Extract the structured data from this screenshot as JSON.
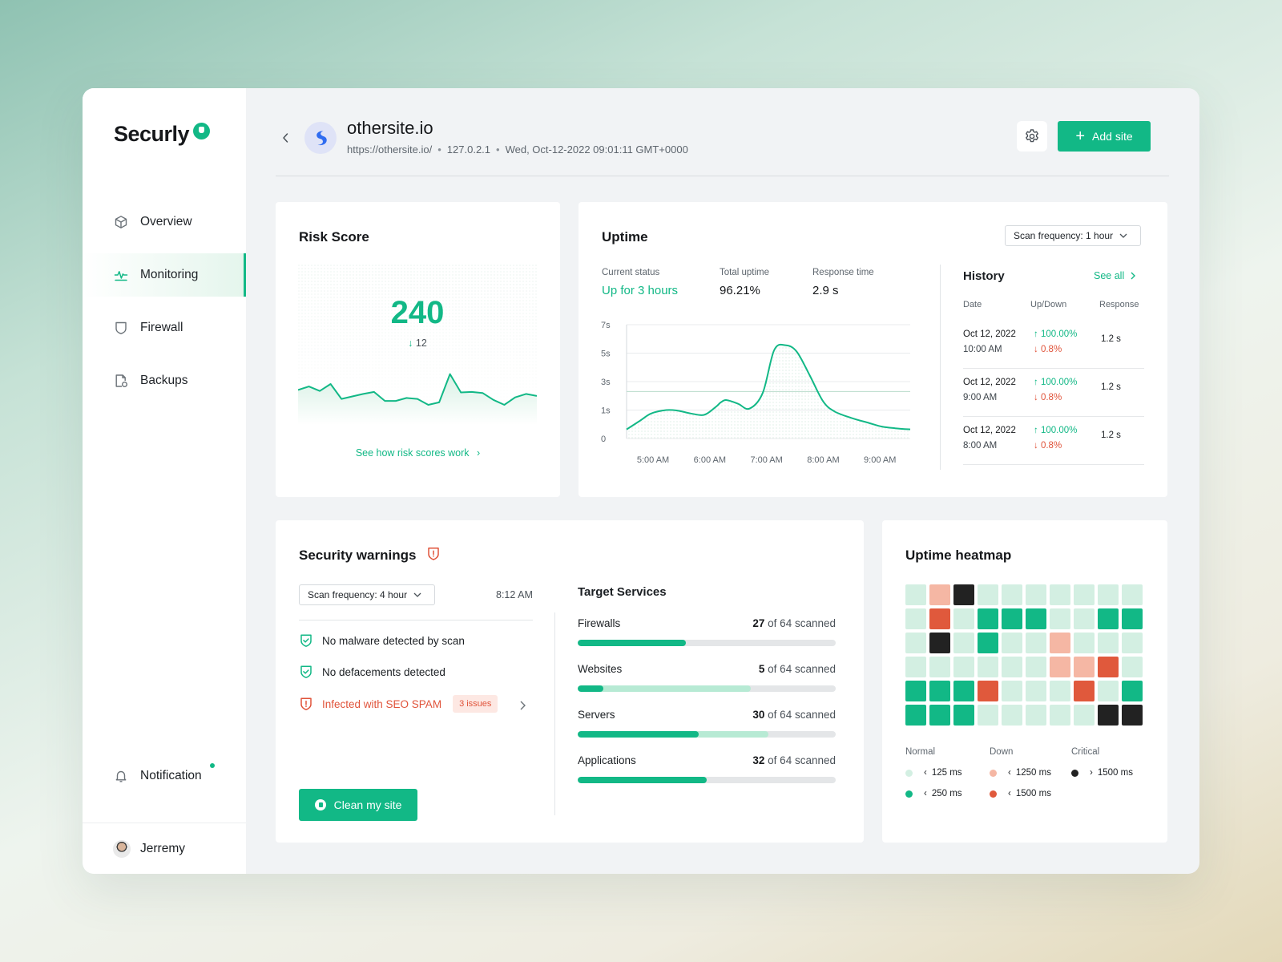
{
  "sidebar": {
    "brand": "Securly",
    "items": [
      {
        "label": "Overview",
        "icon": "cube-icon",
        "active": false
      },
      {
        "label": "Monitoring",
        "icon": "pulse-icon",
        "active": true
      },
      {
        "label": "Firewall",
        "icon": "shield-icon",
        "active": false
      },
      {
        "label": "Backups",
        "icon": "backup-icon",
        "active": false
      }
    ],
    "notification_label": "Notification",
    "user_name": "Jerremy"
  },
  "header": {
    "site_name": "othersite.io",
    "url": "https://othersite.io/",
    "ip": "127.0.2.1",
    "datetime": "Wed, Oct-12-2022 09:01:11 GMT+0000",
    "add_site_label": "Add site"
  },
  "risk": {
    "title": "Risk Score",
    "score": "240",
    "delta": "12",
    "link_label": "See how risk scores work",
    "sparkline": [
      62,
      55,
      64,
      50,
      80,
      75,
      70,
      66,
      84,
      84,
      78,
      80,
      92,
      87,
      30,
      67,
      66,
      68,
      82,
      92,
      77,
      70,
      74
    ]
  },
  "uptime": {
    "title": "Uptime",
    "scan_frequency": "Scan frequency: 1 hour",
    "stats": [
      {
        "label": "Current status",
        "value": "Up for 3 hours"
      },
      {
        "label": "Total uptime",
        "value": "96.21%"
      },
      {
        "label": "Response time",
        "value": "2.9 s"
      }
    ],
    "history": {
      "title": "History",
      "see_all": "See all",
      "columns": [
        "Date",
        "Up/Down",
        "Response"
      ],
      "rows": [
        {
          "date": "Oct 12, 2022",
          "time": "10:00 AM",
          "up": "100.00%",
          "down": "0.8%",
          "response": "1.2 s"
        },
        {
          "date": "Oct 12, 2022",
          "time": "9:00 AM",
          "up": "100.00%",
          "down": "0.8%",
          "response": "1.2 s"
        },
        {
          "date": "Oct 12, 2022",
          "time": "8:00 AM",
          "up": "100.00%",
          "down": "0.8%",
          "response": "1.2 s"
        }
      ]
    }
  },
  "chart_data": {
    "type": "line",
    "y_tick_labels": [
      "0",
      "1s",
      "3s",
      "5s",
      "7s"
    ],
    "x_tick_labels": [
      "5:00 AM",
      "6:00 AM",
      "7:00 AM",
      "8:00 AM",
      "9:00 AM"
    ],
    "ylim": [
      0,
      4
    ],
    "reference_line": 1.65,
    "x": [
      0,
      0.7,
      1.3,
      2.1,
      2.7,
      3.4,
      4.1,
      4.7,
      5.0,
      5.3,
      5.9,
      6.5,
      7.2,
      7.8,
      8.4,
      9.0,
      9.7,
      10.4,
      11.0,
      11.9,
      12.8,
      13.5,
      14.2,
      15.0
    ],
    "y": [
      0.32,
      0.62,
      0.88,
      1.0,
      0.98,
      0.88,
      0.83,
      1.1,
      1.28,
      1.35,
      1.22,
      1.05,
      1.6,
      3.1,
      3.28,
      3.05,
      2.2,
      1.3,
      0.95,
      0.72,
      0.55,
      0.42,
      0.36,
      0.32
    ],
    "xlim": [
      0,
      15
    ],
    "x_tick_positions": [
      1.4,
      4.4,
      7.4,
      10.4,
      13.4
    ]
  },
  "security": {
    "title": "Security warnings",
    "scan_frequency": "Scan frequency: 4 hour",
    "scan_time": "8:12 AM",
    "checks": [
      {
        "label": "No malware detected by scan",
        "status": "ok"
      },
      {
        "label": "No defacements detected",
        "status": "ok"
      },
      {
        "label": "Infected with SEO SPAM",
        "status": "alert",
        "badge": "3 issues"
      }
    ],
    "clean_label": "Clean my site",
    "target_services": {
      "title": "Target Services",
      "items": [
        {
          "name": "Firewalls",
          "count": "27",
          "of_label": "of 64 scanned",
          "fill": 0.42,
          "secondary_fill": 0
        },
        {
          "name": "Websites",
          "count": "5",
          "of_label": "of 64 scanned",
          "fill": 0.1,
          "secondary_fill": 0.67
        },
        {
          "name": "Servers",
          "count": "30",
          "of_label": "of 64 scanned",
          "fill": 0.47,
          "secondary_fill": 0.74
        },
        {
          "name": "Applications",
          "count": "32",
          "of_label": "of 64 scanned",
          "fill": 0.5,
          "secondary_fill": 0
        }
      ]
    }
  },
  "heatmap": {
    "title": "Uptime heatmap",
    "colors": {
      "n1": "#d3efe2",
      "n2": "#12b886",
      "d1": "#f5b7a4",
      "d2": "#e0593c",
      "c": "#222222"
    },
    "grid": [
      [
        "n1",
        "d1",
        "c",
        "n1",
        "n1",
        "n1",
        "n1",
        "n1",
        "n1",
        "n1"
      ],
      [
        "n1",
        "d2",
        "n1",
        "n2",
        "n2",
        "n2",
        "n1",
        "n1",
        "n2",
        "n2"
      ],
      [
        "n1",
        "c",
        "n1",
        "n2",
        "n1",
        "n1",
        "d1",
        "n1",
        "n1",
        "n1"
      ],
      [
        "n1",
        "n1",
        "n1",
        "n1",
        "n1",
        "n1",
        "d1",
        "d1",
        "d2",
        "n1"
      ],
      [
        "n2",
        "n2",
        "n2",
        "d2",
        "n1",
        "n1",
        "n1",
        "d2",
        "n1",
        "n2"
      ],
      [
        "n2",
        "n2",
        "n2",
        "n1",
        "n1",
        "n1",
        "n1",
        "n1",
        "c",
        "c"
      ]
    ],
    "legend": [
      {
        "title": "Normal",
        "items": [
          {
            "color": "#d3efe2",
            "label": "125 ms"
          },
          {
            "color": "#12b886",
            "label": "250 ms"
          }
        ]
      },
      {
        "title": "Down",
        "items": [
          {
            "color": "#f5b7a4",
            "label": "1250 ms"
          },
          {
            "color": "#e0593c",
            "label": "1500 ms"
          }
        ]
      },
      {
        "title": "Critical",
        "items": [
          {
            "color": "#222222",
            "label": "1500 ms"
          }
        ]
      }
    ],
    "legend_prefix": [
      "‹",
      "‹",
      "›"
    ]
  }
}
